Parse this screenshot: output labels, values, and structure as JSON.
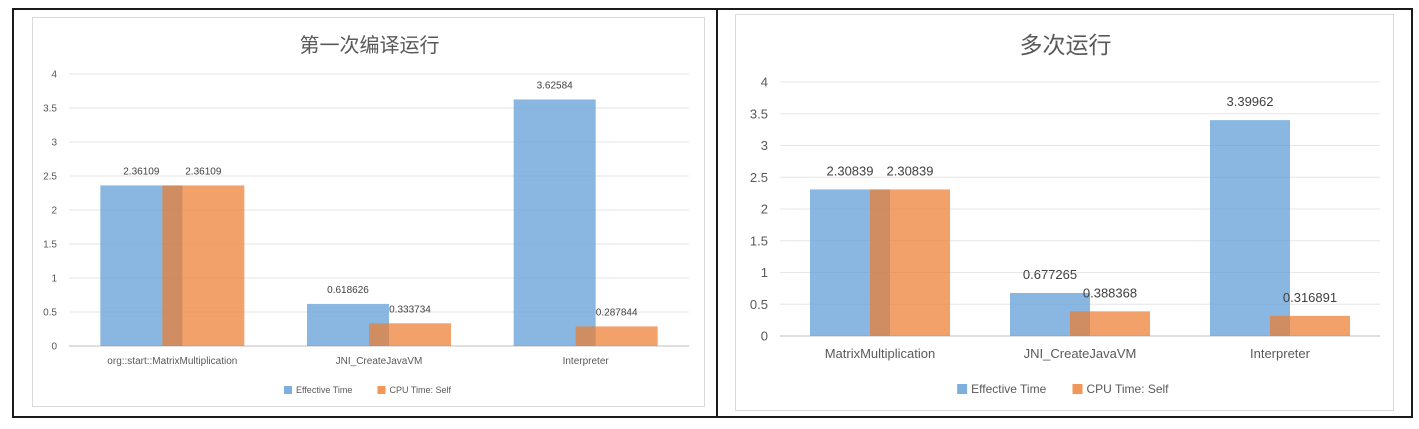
{
  "chart_data": [
    {
      "type": "bar",
      "title": "第一次编译运行",
      "categories": [
        "org::start::MatrixMultiplication",
        "JNI_CreateJavaVM",
        "Interpreter"
      ],
      "series": [
        {
          "name": "Effective Time",
          "values": [
            2.36109,
            0.618626,
            3.62584
          ],
          "labels": [
            "2.36109",
            "0.618626",
            "3.62584"
          ],
          "color": "#5b9bd5"
        },
        {
          "name": "CPU Time: Self",
          "values": [
            2.36109,
            0.333734,
            0.287844
          ],
          "labels": [
            "2.36109",
            "0.333734",
            "0.287844"
          ],
          "color": "#ed7d31"
        }
      ],
      "yticks": [
        "0",
        "0.5",
        "1",
        "1.5",
        "2",
        "2.5",
        "3",
        "3.5",
        "4"
      ],
      "ylim": [
        0,
        4
      ],
      "grid": true,
      "legend": "bottom",
      "xlabel": "",
      "ylabel": ""
    },
    {
      "type": "bar",
      "title": "多次运行",
      "categories": [
        "MatrixMultiplication",
        "JNI_CreateJavaVM",
        "Interpreter"
      ],
      "series": [
        {
          "name": "Effective Time",
          "values": [
            2.30839,
            0.677265,
            3.39962
          ],
          "labels": [
            "2.30839",
            "0.677265",
            "3.39962"
          ],
          "color": "#5b9bd5"
        },
        {
          "name": "CPU Time: Self",
          "values": [
            2.30839,
            0.388368,
            0.316891
          ],
          "labels": [
            "2.30839",
            "0.388368",
            "0.316891"
          ],
          "color": "#ed7d31"
        }
      ],
      "yticks": [
        "0",
        "0.5",
        "1",
        "1.5",
        "2",
        "2.5",
        "3",
        "3.5",
        "4"
      ],
      "ylim": [
        0,
        4
      ],
      "grid": true,
      "legend": "bottom",
      "xlabel": "",
      "ylabel": ""
    }
  ]
}
